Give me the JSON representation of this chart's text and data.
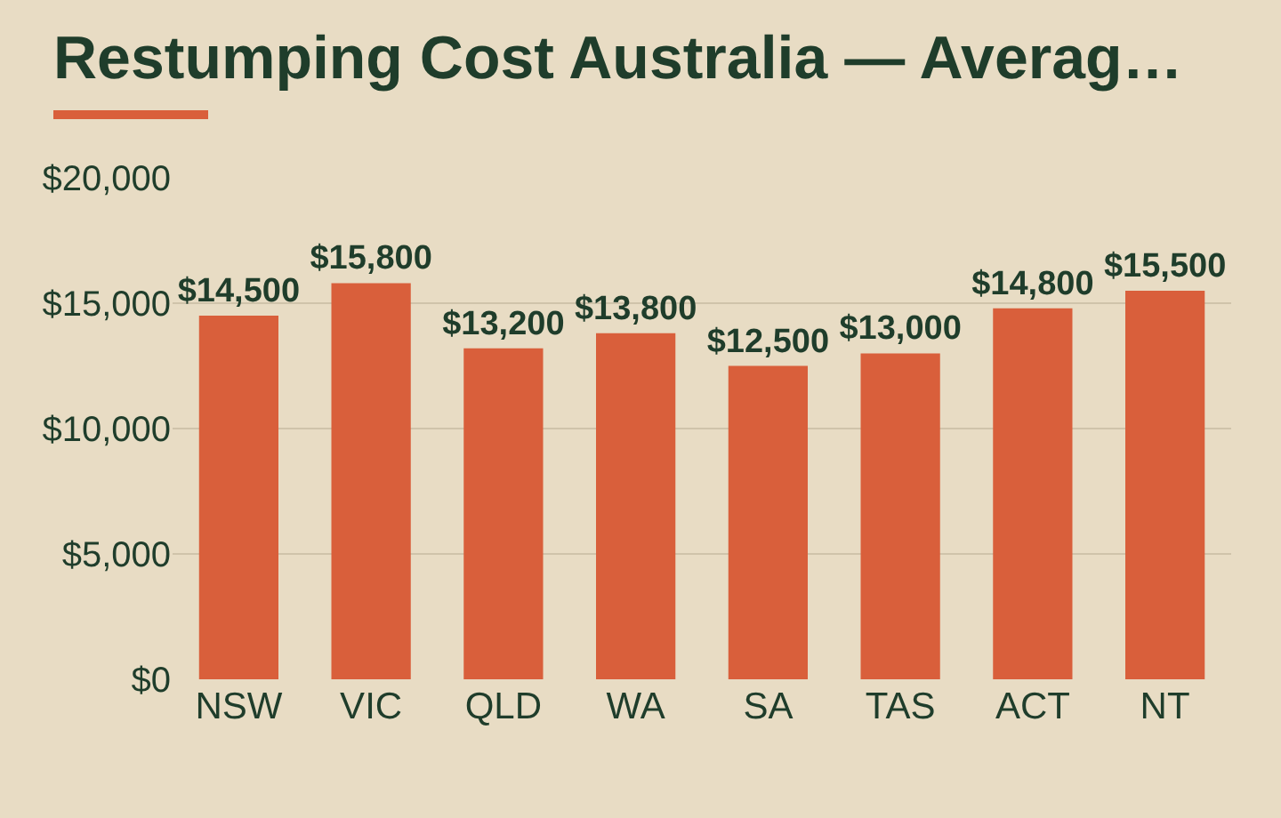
{
  "chart_data": {
    "type": "bar",
    "title": "Restumping Cost Australia — Averag…",
    "categories": [
      "NSW",
      "VIC",
      "QLD",
      "WA",
      "SA",
      "TAS",
      "ACT",
      "NT"
    ],
    "values": [
      14500,
      15800,
      13200,
      13800,
      12500,
      13000,
      14800,
      15500
    ],
    "value_labels": [
      "$14,500",
      "$15,800",
      "$13,200",
      "$13,800",
      "$12,500",
      "$13,000",
      "$14,800",
      "$15,500"
    ],
    "color": "#d95f3b",
    "ylim": [
      0,
      20000
    ],
    "yticks": [
      {
        "value": 0,
        "label": "$0"
      },
      {
        "value": 5000,
        "label": "$5,000"
      },
      {
        "value": 10000,
        "label": "$10,000"
      },
      {
        "value": 15000,
        "label": "$15,000"
      },
      {
        "value": 20000,
        "label": "$20,000"
      }
    ],
    "grid": "y"
  }
}
